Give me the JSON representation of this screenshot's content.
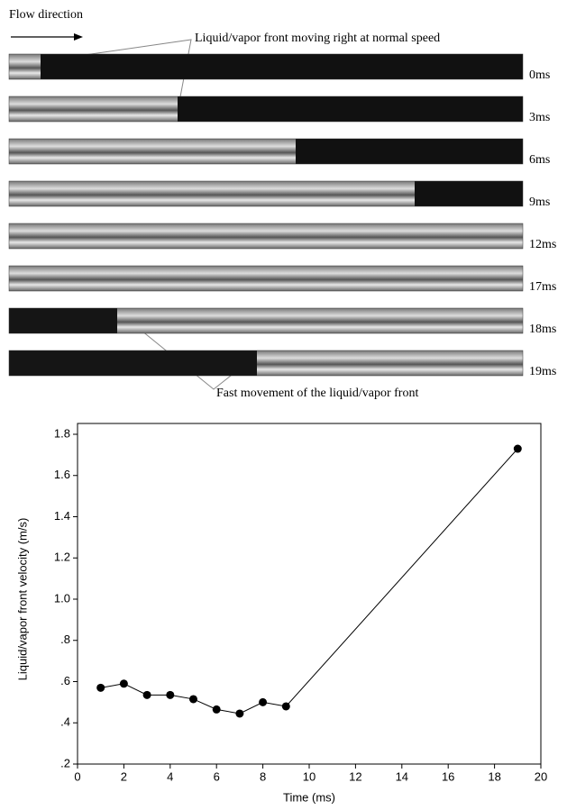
{
  "flow_label": "Flow direction",
  "annotation_top": "Liquid/vapor front moving right at normal speed",
  "annotation_bottom": "Fast movement of the liquid/vapor front",
  "photo_strips": [
    {
      "label": "0ms"
    },
    {
      "label": "3ms"
    },
    {
      "label": "6ms"
    },
    {
      "label": "9ms"
    },
    {
      "label": "12ms"
    },
    {
      "label": "17ms"
    },
    {
      "label": "18ms"
    },
    {
      "label": "19ms"
    }
  ],
  "chart_data": {
    "type": "line",
    "x_label": "Time (ms)",
    "y_label": "Liquid/vapor front velocity (m/s)",
    "x": [
      1,
      2,
      3,
      4,
      5,
      6,
      7,
      8,
      9,
      19
    ],
    "values": [
      0.57,
      0.59,
      0.535,
      0.535,
      0.515,
      0.465,
      0.445,
      0.5,
      0.48,
      1.73
    ],
    "color": "#000000",
    "xlim": [
      0,
      20
    ],
    "xticks": [
      0,
      2,
      4,
      6,
      8,
      10,
      12,
      14,
      16,
      18,
      20
    ],
    "ylim": [
      0.2,
      1.8
    ],
    "yticks": [
      {
        "value": 0.2,
        "label": ".2"
      },
      {
        "value": 0.4,
        "label": ".4"
      },
      {
        "value": 0.6,
        "label": ".6"
      },
      {
        "value": 0.8,
        "label": ".8"
      },
      {
        "value": 1.0,
        "label": "1.0"
      },
      1.2,
      1.4,
      1.6,
      1.8
    ]
  }
}
